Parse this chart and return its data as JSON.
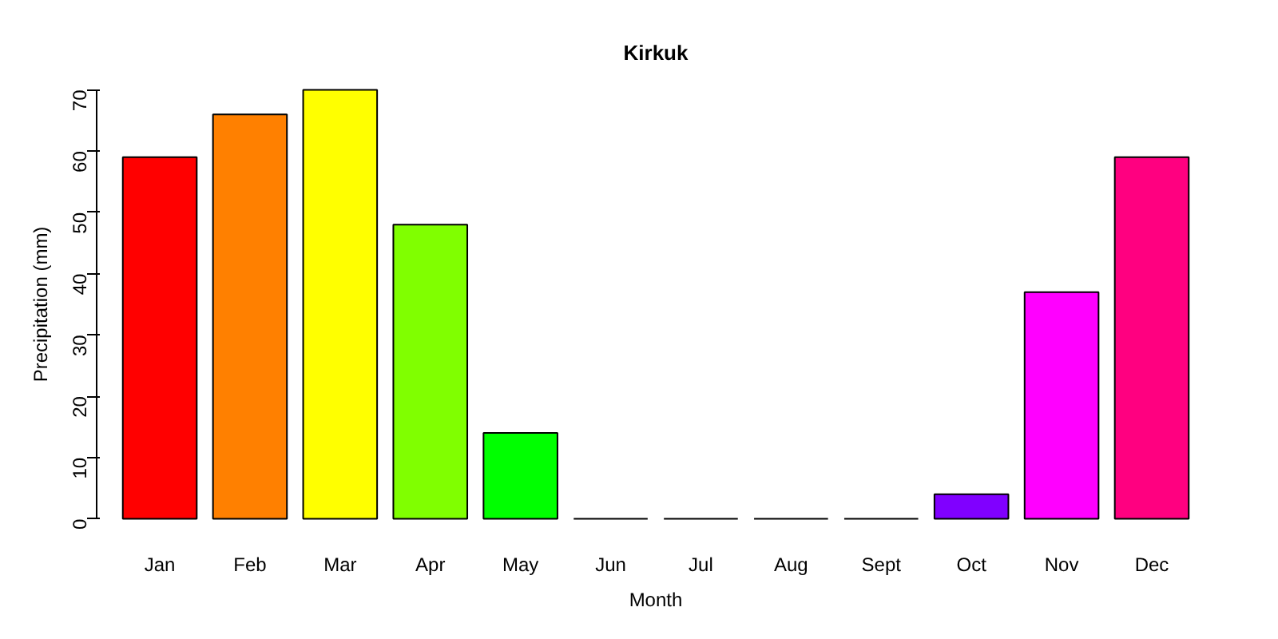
{
  "chart_data": {
    "type": "bar",
    "title": "Kirkuk",
    "xlabel": "Month",
    "ylabel": "Precipitation (mm)",
    "categories": [
      "Jan",
      "Feb",
      "Mar",
      "Apr",
      "May",
      "Jun",
      "Jul",
      "Aug",
      "Sept",
      "Oct",
      "Nov",
      "Dec"
    ],
    "values": [
      59,
      66,
      70,
      48,
      14,
      0,
      0,
      0,
      0,
      4,
      37,
      59
    ],
    "colors": [
      "#ff0000",
      "#ff8000",
      "#ffff00",
      "#80ff00",
      "#00ff00",
      "#00ff80",
      "#00ffff",
      "#0080ff",
      "#0000ff",
      "#8000ff",
      "#ff00ff",
      "#ff0080"
    ],
    "ylim": [
      0,
      70
    ],
    "yticks": [
      0,
      10,
      20,
      30,
      40,
      50,
      60,
      70
    ],
    "grid": false
  }
}
